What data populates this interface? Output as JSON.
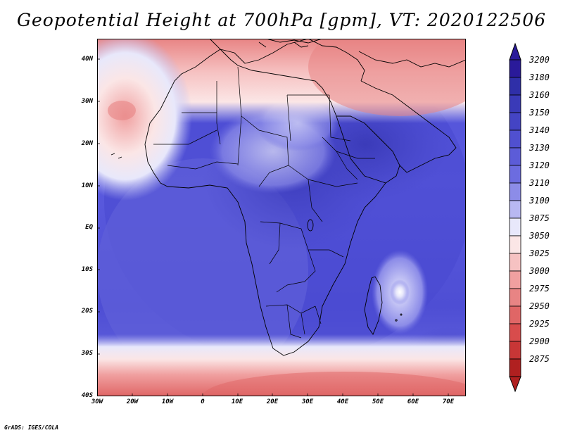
{
  "title": "Geopotential Height at 700hPa [gpm], VT: 2020122506",
  "footer": "GrADS: IGES/COLA",
  "map": {
    "lat_ticks": [
      "40N",
      "30N",
      "20N",
      "10N",
      "EQ",
      "10S",
      "20S",
      "30S",
      "40S"
    ],
    "lon_ticks": [
      "30W",
      "20W",
      "10W",
      "0",
      "10E",
      "20E",
      "30E",
      "40E",
      "50E",
      "60E",
      "70E"
    ],
    "extent_deg": {
      "lon_min": -30,
      "lon_max": 75,
      "lat_min": -40,
      "lat_max": 45
    }
  },
  "colorbar": {
    "levels": [
      {
        "value": "3200",
        "color": "#2a1a9a"
      },
      {
        "value": "3180",
        "color": "#2f2fa8"
      },
      {
        "value": "3160",
        "color": "#3a3ab8"
      },
      {
        "value": "3150",
        "color": "#4444c4"
      },
      {
        "value": "3140",
        "color": "#5050d0"
      },
      {
        "value": "3130",
        "color": "#5c5cd8"
      },
      {
        "value": "3120",
        "color": "#6c6ce0"
      },
      {
        "value": "3110",
        "color": "#8c8ce8"
      },
      {
        "value": "3100",
        "color": "#b8b8f2"
      },
      {
        "value": "3075",
        "color": "#e8e8fb"
      },
      {
        "value": "3050",
        "color": "#fbe6e6"
      },
      {
        "value": "3025",
        "color": "#f6c2c2"
      },
      {
        "value": "3000",
        "color": "#f0a0a0"
      },
      {
        "value": "2975",
        "color": "#e88484"
      },
      {
        "value": "2950",
        "color": "#e06666"
      },
      {
        "value": "2925",
        "color": "#d84c4c"
      },
      {
        "value": "2900",
        "color": "#c83636"
      },
      {
        "value": "2875",
        "color": "#b02020"
      }
    ]
  }
}
